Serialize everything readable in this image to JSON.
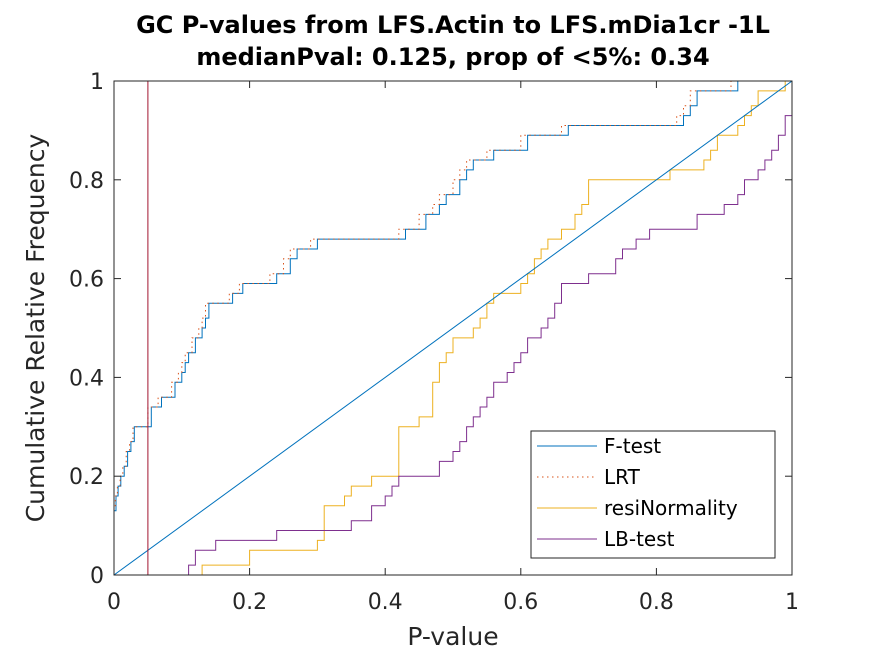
{
  "chart_data": {
    "type": "line",
    "title": "GC P-values from LFS.Actin to LFS.mDia1cr -1L",
    "subtitle": "medianPval: 0.125, prop of <5%: 0.34",
    "xlabel": "P-value",
    "ylabel": "Cumulative Relative Frequency",
    "xlim": [
      0,
      1
    ],
    "ylim": [
      0,
      1
    ],
    "x_ticks": [
      "0",
      "0.2",
      "0.4",
      "0.6",
      "0.8",
      "1"
    ],
    "y_ticks": [
      "0",
      "0.2",
      "0.4",
      "0.6",
      "0.8",
      "1"
    ],
    "grid": false,
    "legend_position": "bottom-right",
    "threshold_x": 0.05,
    "threshold_color": "#a2142f",
    "series": [
      {
        "name": "F-test",
        "color": "#0072bd",
        "style": "solid",
        "step": true,
        "points": [
          [
            0,
            0
          ],
          [
            0,
            0.13
          ],
          [
            0.003,
            0.16
          ],
          [
            0.006,
            0.18
          ],
          [
            0.01,
            0.2
          ],
          [
            0.015,
            0.22
          ],
          [
            0.02,
            0.25
          ],
          [
            0.025,
            0.27
          ],
          [
            0.03,
            0.3
          ],
          [
            0.05,
            0.3
          ],
          [
            0.055,
            0.34
          ],
          [
            0.065,
            0.34
          ],
          [
            0.07,
            0.36
          ],
          [
            0.085,
            0.36
          ],
          [
            0.09,
            0.39
          ],
          [
            0.1,
            0.41
          ],
          [
            0.105,
            0.43
          ],
          [
            0.11,
            0.45
          ],
          [
            0.12,
            0.48
          ],
          [
            0.13,
            0.5
          ],
          [
            0.135,
            0.52
          ],
          [
            0.14,
            0.55
          ],
          [
            0.17,
            0.55
          ],
          [
            0.175,
            0.57
          ],
          [
            0.19,
            0.59
          ],
          [
            0.23,
            0.59
          ],
          [
            0.24,
            0.61
          ],
          [
            0.26,
            0.64
          ],
          [
            0.27,
            0.66
          ],
          [
            0.29,
            0.66
          ],
          [
            0.3,
            0.68
          ],
          [
            0.42,
            0.68
          ],
          [
            0.43,
            0.7
          ],
          [
            0.45,
            0.7
          ],
          [
            0.46,
            0.73
          ],
          [
            0.48,
            0.75
          ],
          [
            0.49,
            0.77
          ],
          [
            0.51,
            0.8
          ],
          [
            0.52,
            0.82
          ],
          [
            0.53,
            0.84
          ],
          [
            0.56,
            0.86
          ],
          [
            0.6,
            0.86
          ],
          [
            0.61,
            0.89
          ],
          [
            0.66,
            0.89
          ],
          [
            0.67,
            0.91
          ],
          [
            0.83,
            0.91
          ],
          [
            0.84,
            0.93
          ],
          [
            0.85,
            0.95
          ],
          [
            0.86,
            0.98
          ],
          [
            0.91,
            0.98
          ],
          [
            0.92,
            1.0
          ],
          [
            1.0,
            1.0
          ]
        ]
      },
      {
        "name": "LRT",
        "color": "#d95319",
        "style": "dotted",
        "step": true,
        "points": [
          [
            0,
            0
          ],
          [
            0,
            0.14
          ],
          [
            0.002,
            0.16
          ],
          [
            0.005,
            0.18
          ],
          [
            0.009,
            0.2
          ],
          [
            0.013,
            0.22
          ],
          [
            0.018,
            0.25
          ],
          [
            0.023,
            0.27
          ],
          [
            0.028,
            0.3
          ],
          [
            0.045,
            0.3
          ],
          [
            0.05,
            0.34
          ],
          [
            0.06,
            0.34
          ],
          [
            0.065,
            0.36
          ],
          [
            0.08,
            0.36
          ],
          [
            0.085,
            0.39
          ],
          [
            0.095,
            0.41
          ],
          [
            0.1,
            0.43
          ],
          [
            0.105,
            0.45
          ],
          [
            0.115,
            0.48
          ],
          [
            0.125,
            0.5
          ],
          [
            0.13,
            0.52
          ],
          [
            0.135,
            0.55
          ],
          [
            0.165,
            0.55
          ],
          [
            0.17,
            0.57
          ],
          [
            0.185,
            0.59
          ],
          [
            0.22,
            0.59
          ],
          [
            0.23,
            0.61
          ],
          [
            0.25,
            0.64
          ],
          [
            0.26,
            0.66
          ],
          [
            0.28,
            0.66
          ],
          [
            0.29,
            0.68
          ],
          [
            0.41,
            0.68
          ],
          [
            0.42,
            0.7
          ],
          [
            0.44,
            0.7
          ],
          [
            0.45,
            0.73
          ],
          [
            0.47,
            0.75
          ],
          [
            0.48,
            0.77
          ],
          [
            0.5,
            0.8
          ],
          [
            0.51,
            0.82
          ],
          [
            0.52,
            0.84
          ],
          [
            0.55,
            0.86
          ],
          [
            0.59,
            0.86
          ],
          [
            0.6,
            0.89
          ],
          [
            0.65,
            0.89
          ],
          [
            0.66,
            0.91
          ],
          [
            0.82,
            0.91
          ],
          [
            0.83,
            0.93
          ],
          [
            0.84,
            0.95
          ],
          [
            0.85,
            0.98
          ],
          [
            0.9,
            0.98
          ],
          [
            0.91,
            1.0
          ],
          [
            1.0,
            1.0
          ]
        ]
      },
      {
        "name": "resiNormality",
        "color": "#edb120",
        "style": "solid",
        "step": true,
        "points": [
          [
            0,
            0
          ],
          [
            0.13,
            0
          ],
          [
            0.13,
            0.02
          ],
          [
            0.2,
            0.02
          ],
          [
            0.2,
            0.05
          ],
          [
            0.3,
            0.05
          ],
          [
            0.3,
            0.07
          ],
          [
            0.31,
            0.07
          ],
          [
            0.31,
            0.09
          ],
          [
            0.31,
            0.11
          ],
          [
            0.31,
            0.14
          ],
          [
            0.34,
            0.14
          ],
          [
            0.34,
            0.16
          ],
          [
            0.35,
            0.16
          ],
          [
            0.35,
            0.18
          ],
          [
            0.38,
            0.18
          ],
          [
            0.38,
            0.2
          ],
          [
            0.41,
            0.2
          ],
          [
            0.42,
            0.23
          ],
          [
            0.42,
            0.25
          ],
          [
            0.42,
            0.27
          ],
          [
            0.42,
            0.3
          ],
          [
            0.44,
            0.3
          ],
          [
            0.45,
            0.32
          ],
          [
            0.47,
            0.34
          ],
          [
            0.47,
            0.36
          ],
          [
            0.47,
            0.39
          ],
          [
            0.48,
            0.41
          ],
          [
            0.48,
            0.43
          ],
          [
            0.49,
            0.45
          ],
          [
            0.5,
            0.48
          ],
          [
            0.53,
            0.48
          ],
          [
            0.53,
            0.5
          ],
          [
            0.54,
            0.52
          ],
          [
            0.55,
            0.55
          ],
          [
            0.56,
            0.57
          ],
          [
            0.59,
            0.57
          ],
          [
            0.6,
            0.59
          ],
          [
            0.61,
            0.61
          ],
          [
            0.62,
            0.64
          ],
          [
            0.63,
            0.66
          ],
          [
            0.64,
            0.68
          ],
          [
            0.66,
            0.68
          ],
          [
            0.66,
            0.7
          ],
          [
            0.68,
            0.73
          ],
          [
            0.69,
            0.75
          ],
          [
            0.7,
            0.77
          ],
          [
            0.7,
            0.8
          ],
          [
            0.82,
            0.8
          ],
          [
            0.82,
            0.82
          ],
          [
            0.86,
            0.82
          ],
          [
            0.87,
            0.84
          ],
          [
            0.88,
            0.86
          ],
          [
            0.89,
            0.89
          ],
          [
            0.91,
            0.89
          ],
          [
            0.92,
            0.91
          ],
          [
            0.93,
            0.93
          ],
          [
            0.94,
            0.95
          ],
          [
            0.95,
            0.98
          ],
          [
            0.98,
            0.98
          ],
          [
            0.99,
            1.0
          ],
          [
            1.0,
            1.0
          ]
        ]
      },
      {
        "name": "LB-test",
        "color": "#7e2f8e",
        "style": "solid",
        "step": true,
        "points": [
          [
            0,
            0
          ],
          [
            0.11,
            0
          ],
          [
            0.11,
            0.02
          ],
          [
            0.12,
            0.05
          ],
          [
            0.15,
            0.05
          ],
          [
            0.15,
            0.07
          ],
          [
            0.24,
            0.07
          ],
          [
            0.24,
            0.09
          ],
          [
            0.35,
            0.09
          ],
          [
            0.35,
            0.11
          ],
          [
            0.38,
            0.11
          ],
          [
            0.38,
            0.14
          ],
          [
            0.4,
            0.14
          ],
          [
            0.4,
            0.16
          ],
          [
            0.41,
            0.18
          ],
          [
            0.42,
            0.2
          ],
          [
            0.47,
            0.2
          ],
          [
            0.48,
            0.23
          ],
          [
            0.5,
            0.25
          ],
          [
            0.51,
            0.27
          ],
          [
            0.52,
            0.3
          ],
          [
            0.53,
            0.32
          ],
          [
            0.54,
            0.34
          ],
          [
            0.55,
            0.36
          ],
          [
            0.56,
            0.39
          ],
          [
            0.58,
            0.41
          ],
          [
            0.59,
            0.43
          ],
          [
            0.6,
            0.45
          ],
          [
            0.61,
            0.48
          ],
          [
            0.63,
            0.5
          ],
          [
            0.64,
            0.52
          ],
          [
            0.65,
            0.55
          ],
          [
            0.66,
            0.57
          ],
          [
            0.66,
            0.59
          ],
          [
            0.7,
            0.59
          ],
          [
            0.7,
            0.61
          ],
          [
            0.73,
            0.61
          ],
          [
            0.74,
            0.64
          ],
          [
            0.75,
            0.66
          ],
          [
            0.77,
            0.68
          ],
          [
            0.79,
            0.7
          ],
          [
            0.85,
            0.7
          ],
          [
            0.86,
            0.73
          ],
          [
            0.89,
            0.73
          ],
          [
            0.9,
            0.75
          ],
          [
            0.92,
            0.77
          ],
          [
            0.93,
            0.8
          ],
          [
            0.95,
            0.82
          ],
          [
            0.96,
            0.84
          ],
          [
            0.97,
            0.86
          ],
          [
            0.98,
            0.89
          ],
          [
            0.99,
            0.93
          ],
          [
            1.0,
            0.98
          ]
        ]
      },
      {
        "name": "",
        "color": "#0072bd",
        "style": "solid",
        "step": false,
        "points": [
          [
            0,
            0
          ],
          [
            1,
            1
          ]
        ]
      }
    ]
  }
}
